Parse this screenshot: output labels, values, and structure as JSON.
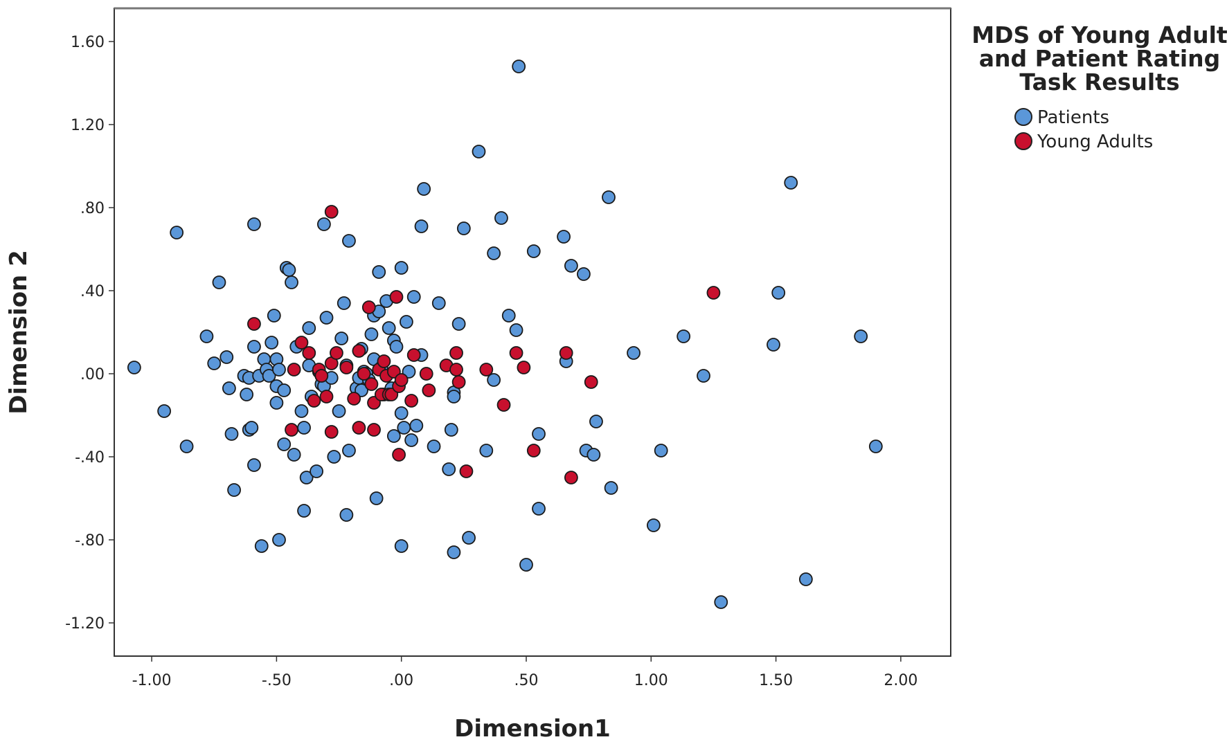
{
  "chart_data": {
    "type": "scatter",
    "xlabel": "Dimension1",
    "ylabel": "Dimension 2",
    "xlim": [
      -1.15,
      2.2
    ],
    "ylim": [
      -1.36,
      1.76
    ],
    "x_ticks": [
      -1.0,
      -0.5,
      0.0,
      0.5,
      1.0,
      1.5,
      2.0
    ],
    "x_tick_labels": [
      "-1.00",
      "-.50",
      ".00",
      ".50",
      "1.00",
      "1.50",
      "2.00"
    ],
    "y_ticks": [
      1.6,
      1.2,
      0.8,
      0.4,
      0.0,
      -0.4,
      -0.8,
      -1.2
    ],
    "y_tick_labels": [
      "1.60",
      "1.20",
      ".80",
      ".40",
      ".00",
      "-.40",
      "-.80",
      "-1.20"
    ],
    "grid": false,
    "legend": {
      "title_lines": [
        "MDS of Young Adult",
        "and Patient Rating",
        "Task Results"
      ],
      "position": "top-right"
    },
    "series": [
      {
        "name": "Patients",
        "color": "#5b97d9",
        "points": [
          [
            -1.07,
            0.03
          ],
          [
            -0.95,
            -0.18
          ],
          [
            -0.9,
            0.68
          ],
          [
            -0.86,
            -0.35
          ],
          [
            -0.78,
            0.18
          ],
          [
            -0.75,
            0.05
          ],
          [
            -0.73,
            0.44
          ],
          [
            -0.7,
            0.08
          ],
          [
            -0.69,
            -0.07
          ],
          [
            -0.68,
            -0.29
          ],
          [
            -0.67,
            -0.56
          ],
          [
            -0.63,
            -0.01
          ],
          [
            -0.62,
            -0.1
          ],
          [
            -0.61,
            -0.02
          ],
          [
            -0.61,
            -0.27
          ],
          [
            -0.6,
            -0.26
          ],
          [
            -0.59,
            0.72
          ],
          [
            -0.59,
            0.13
          ],
          [
            -0.59,
            -0.44
          ],
          [
            -0.57,
            -0.01
          ],
          [
            -0.56,
            -0.83
          ],
          [
            -0.55,
            0.07
          ],
          [
            -0.54,
            0.02
          ],
          [
            -0.53,
            -0.01
          ],
          [
            -0.52,
            0.15
          ],
          [
            -0.51,
            0.28
          ],
          [
            -0.5,
            -0.14
          ],
          [
            -0.5,
            0.07
          ],
          [
            -0.5,
            -0.06
          ],
          [
            -0.49,
            0.02
          ],
          [
            -0.49,
            -0.8
          ],
          [
            -0.47,
            -0.08
          ],
          [
            -0.47,
            -0.34
          ],
          [
            -0.46,
            0.51
          ],
          [
            -0.45,
            0.5
          ],
          [
            -0.44,
            0.44
          ],
          [
            -0.43,
            -0.39
          ],
          [
            -0.42,
            0.13
          ],
          [
            -0.4,
            -0.18
          ],
          [
            -0.39,
            -0.26
          ],
          [
            -0.39,
            -0.66
          ],
          [
            -0.38,
            -0.5
          ],
          [
            -0.37,
            0.04
          ],
          [
            -0.37,
            0.22
          ],
          [
            -0.36,
            -0.11
          ],
          [
            -0.34,
            -0.47
          ],
          [
            -0.33,
            0.01
          ],
          [
            -0.32,
            -0.05
          ],
          [
            -0.31,
            0.72
          ],
          [
            -0.31,
            -0.06
          ],
          [
            -0.3,
            0.27
          ],
          [
            -0.28,
            -0.02
          ],
          [
            -0.27,
            -0.4
          ],
          [
            -0.25,
            -0.18
          ],
          [
            -0.24,
            0.17
          ],
          [
            -0.23,
            0.34
          ],
          [
            -0.22,
            0.04
          ],
          [
            -0.22,
            -0.68
          ],
          [
            -0.21,
            -0.37
          ],
          [
            -0.21,
            0.64
          ],
          [
            -0.18,
            -0.07
          ],
          [
            -0.17,
            -0.02
          ],
          [
            -0.16,
            0.12
          ],
          [
            -0.16,
            -0.08
          ],
          [
            -0.15,
            0.01
          ],
          [
            -0.14,
            0.0
          ],
          [
            -0.13,
            -0.03
          ],
          [
            -0.12,
            0.19
          ],
          [
            -0.11,
            0.28
          ],
          [
            -0.11,
            0.07
          ],
          [
            -0.1,
            -0.6
          ],
          [
            -0.09,
            0.49
          ],
          [
            -0.09,
            0.3
          ],
          [
            -0.08,
            0.03
          ],
          [
            -0.07,
            -0.1
          ],
          [
            -0.06,
            0.35
          ],
          [
            -0.05,
            0.22
          ],
          [
            -0.04,
            -0.07
          ],
          [
            -0.03,
            0.16
          ],
          [
            -0.03,
            -0.3
          ],
          [
            -0.02,
            0.13
          ],
          [
            0.0,
            -0.19
          ],
          [
            0.0,
            0.51
          ],
          [
            0.0,
            -0.83
          ],
          [
            0.01,
            -0.26
          ],
          [
            0.02,
            0.25
          ],
          [
            0.03,
            0.01
          ],
          [
            0.04,
            -0.32
          ],
          [
            0.05,
            0.37
          ],
          [
            0.06,
            -0.25
          ],
          [
            0.08,
            0.71
          ],
          [
            0.08,
            0.09
          ],
          [
            0.09,
            0.89
          ],
          [
            0.13,
            -0.35
          ],
          [
            0.15,
            0.34
          ],
          [
            0.19,
            -0.46
          ],
          [
            0.2,
            -0.27
          ],
          [
            0.21,
            -0.09
          ],
          [
            0.21,
            -0.11
          ],
          [
            0.21,
            -0.86
          ],
          [
            0.23,
            0.24
          ],
          [
            0.25,
            0.7
          ],
          [
            0.27,
            -0.79
          ],
          [
            0.31,
            1.07
          ],
          [
            0.34,
            -0.37
          ],
          [
            0.37,
            0.58
          ],
          [
            0.37,
            -0.03
          ],
          [
            0.4,
            0.75
          ],
          [
            0.43,
            0.28
          ],
          [
            0.46,
            0.21
          ],
          [
            0.47,
            1.48
          ],
          [
            0.5,
            -0.92
          ],
          [
            0.53,
            0.59
          ],
          [
            0.55,
            -0.29
          ],
          [
            0.55,
            -0.65
          ],
          [
            0.65,
            0.66
          ],
          [
            0.66,
            0.06
          ],
          [
            0.68,
            0.52
          ],
          [
            0.73,
            0.48
          ],
          [
            0.74,
            -0.37
          ],
          [
            0.77,
            -0.39
          ],
          [
            0.78,
            -0.23
          ],
          [
            0.83,
            0.85
          ],
          [
            0.84,
            -0.55
          ],
          [
            0.93,
            0.1
          ],
          [
            1.01,
            -0.73
          ],
          [
            1.04,
            -0.37
          ],
          [
            1.13,
            0.18
          ],
          [
            1.21,
            -0.01
          ],
          [
            1.28,
            -1.1
          ],
          [
            1.49,
            0.14
          ],
          [
            1.51,
            0.39
          ],
          [
            1.56,
            0.92
          ],
          [
            1.62,
            -0.99
          ],
          [
            1.84,
            0.18
          ],
          [
            1.9,
            -0.35
          ]
        ]
      },
      {
        "name": "Young Adults",
        "color": "#c8102e",
        "points": [
          [
            -0.59,
            0.24
          ],
          [
            -0.43,
            0.02
          ],
          [
            -0.44,
            -0.27
          ],
          [
            -0.4,
            0.15
          ],
          [
            -0.37,
            0.1
          ],
          [
            -0.35,
            -0.13
          ],
          [
            -0.33,
            0.02
          ],
          [
            -0.32,
            -0.01
          ],
          [
            -0.3,
            -0.11
          ],
          [
            -0.28,
            0.78
          ],
          [
            -0.28,
            0.05
          ],
          [
            -0.28,
            -0.28
          ],
          [
            -0.26,
            0.1
          ],
          [
            -0.22,
            0.03
          ],
          [
            -0.19,
            -0.12
          ],
          [
            -0.17,
            0.11
          ],
          [
            -0.17,
            -0.26
          ],
          [
            -0.15,
            0.0
          ],
          [
            -0.13,
            0.32
          ],
          [
            -0.12,
            -0.05
          ],
          [
            -0.11,
            -0.14
          ],
          [
            -0.11,
            -0.27
          ],
          [
            -0.09,
            0.02
          ],
          [
            -0.08,
            -0.1
          ],
          [
            -0.07,
            0.06
          ],
          [
            -0.06,
            -0.01
          ],
          [
            -0.05,
            -0.1
          ],
          [
            -0.04,
            -0.1
          ],
          [
            -0.03,
            0.01
          ],
          [
            -0.02,
            0.37
          ],
          [
            -0.01,
            -0.06
          ],
          [
            -0.01,
            -0.39
          ],
          [
            0.0,
            -0.03
          ],
          [
            0.04,
            -0.13
          ],
          [
            0.05,
            0.09
          ],
          [
            0.1,
            0.0
          ],
          [
            0.11,
            -0.08
          ],
          [
            0.18,
            0.04
          ],
          [
            0.22,
            0.02
          ],
          [
            0.23,
            -0.04
          ],
          [
            0.22,
            0.1
          ],
          [
            0.26,
            -0.47
          ],
          [
            0.34,
            0.02
          ],
          [
            0.41,
            -0.15
          ],
          [
            0.46,
            0.1
          ],
          [
            0.49,
            0.03
          ],
          [
            0.53,
            -0.37
          ],
          [
            0.66,
            0.1
          ],
          [
            0.68,
            -0.5
          ],
          [
            0.76,
            -0.04
          ],
          [
            1.25,
            0.39
          ]
        ]
      }
    ]
  }
}
